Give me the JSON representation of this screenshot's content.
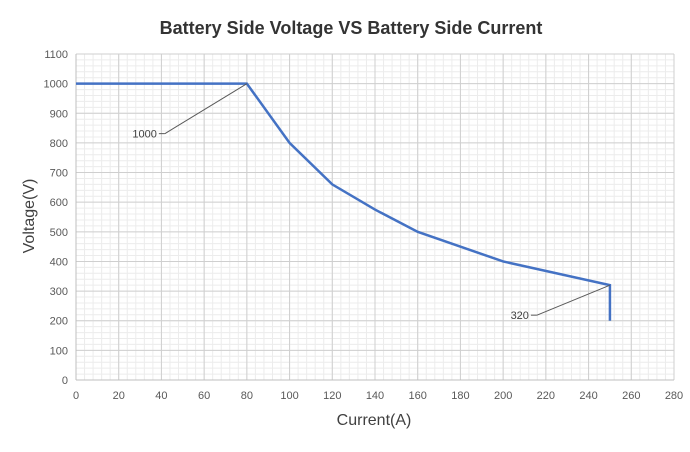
{
  "chart_data": {
    "type": "line",
    "title": "Battery Side Voltage VS Battery Side Current",
    "xlabel": "Current(A)",
    "ylabel": "Voltage(V)",
    "xlim": [
      0,
      280
    ],
    "ylim": [
      0,
      1100
    ],
    "x_ticks": [
      0,
      20,
      40,
      60,
      80,
      100,
      120,
      140,
      160,
      180,
      200,
      220,
      240,
      260,
      280
    ],
    "y_ticks": [
      0,
      100,
      200,
      300,
      400,
      500,
      600,
      700,
      800,
      900,
      1000,
      1100
    ],
    "x_minor_step": 4,
    "y_minor_step": 20,
    "grid": true,
    "series": [
      {
        "color": "#4472c4",
        "points": [
          [
            0,
            1000
          ],
          [
            80,
            1000
          ],
          [
            100,
            800
          ],
          [
            120,
            660
          ],
          [
            140,
            575
          ],
          [
            160,
            500
          ],
          [
            200,
            400
          ],
          [
            250,
            320
          ],
          [
            250,
            200
          ]
        ]
      }
    ],
    "annotations": [
      {
        "text": "1000",
        "x": 80,
        "y": 1000
      },
      {
        "text": "320",
        "x": 250,
        "y": 320
      }
    ]
  }
}
